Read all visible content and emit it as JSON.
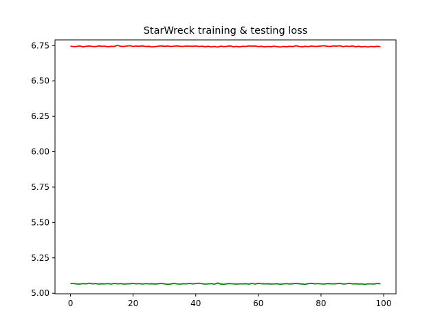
{
  "chart_data": {
    "type": "line",
    "title": "StarWreck training & testing loss",
    "xlabel": "",
    "ylabel": "",
    "xlim": [
      -4.95,
      103.95
    ],
    "ylim": [
      4.9961,
      6.7903
    ],
    "x_ticks": [
      0,
      20,
      40,
      60,
      80,
      100
    ],
    "y_ticks": [
      5.0,
      5.25,
      5.5,
      5.75,
      6.0,
      6.25,
      6.5,
      6.75
    ],
    "grid": false,
    "legend": "none",
    "x": [
      0,
      1,
      2,
      3,
      4,
      5,
      6,
      7,
      8,
      9,
      10,
      11,
      12,
      13,
      14,
      15,
      16,
      17,
      18,
      19,
      20,
      21,
      22,
      23,
      24,
      25,
      26,
      27,
      28,
      29,
      30,
      31,
      32,
      33,
      34,
      35,
      36,
      37,
      38,
      39,
      40,
      41,
      42,
      43,
      44,
      45,
      46,
      47,
      48,
      49,
      50,
      51,
      52,
      53,
      54,
      55,
      56,
      57,
      58,
      59,
      60,
      61,
      62,
      63,
      64,
      65,
      66,
      67,
      68,
      69,
      70,
      71,
      72,
      73,
      74,
      75,
      76,
      77,
      78,
      79,
      80,
      81,
      82,
      83,
      84,
      85,
      86,
      87,
      88,
      89,
      90,
      91,
      92,
      93,
      94,
      95,
      96,
      97,
      98,
      99
    ],
    "series": [
      {
        "color": "#ff0000",
        "values": [
          6.746,
          6.743,
          6.744,
          6.748,
          6.741,
          6.745,
          6.747,
          6.744,
          6.743,
          6.748,
          6.745,
          6.746,
          6.742,
          6.745,
          6.744,
          6.752,
          6.745,
          6.744,
          6.747,
          6.749,
          6.744,
          6.747,
          6.745,
          6.748,
          6.744,
          6.745,
          6.741,
          6.743,
          6.746,
          6.748,
          6.745,
          6.747,
          6.744,
          6.746,
          6.748,
          6.745,
          6.744,
          6.747,
          6.746,
          6.745,
          6.747,
          6.744,
          6.746,
          6.742,
          6.745,
          6.741,
          6.744,
          6.74,
          6.746,
          6.743,
          6.745,
          6.748,
          6.742,
          6.744,
          6.741,
          6.745,
          6.744,
          6.748,
          6.746,
          6.747,
          6.743,
          6.745,
          6.741,
          6.744,
          6.742,
          6.746,
          6.743,
          6.74,
          6.744,
          6.742,
          6.745,
          6.743,
          6.749,
          6.744,
          6.741,
          6.745,
          6.743,
          6.747,
          6.744,
          6.745,
          6.747,
          6.749,
          6.745,
          6.744,
          6.748,
          6.746,
          6.749,
          6.743,
          6.746,
          6.744,
          6.748,
          6.742,
          6.745,
          6.741,
          6.744,
          6.74,
          6.744,
          6.742,
          6.745,
          6.743
        ]
      },
      {
        "color": "#008000",
        "values": [
          5.069,
          5.069,
          5.065,
          5.065,
          5.068,
          5.066,
          5.071,
          5.066,
          5.068,
          5.065,
          5.067,
          5.066,
          5.068,
          5.065,
          5.069,
          5.066,
          5.068,
          5.065,
          5.066,
          5.067,
          5.069,
          5.066,
          5.068,
          5.065,
          5.068,
          5.066,
          5.067,
          5.065,
          5.067,
          5.069,
          5.066,
          5.063,
          5.065,
          5.069,
          5.066,
          5.064,
          5.067,
          5.066,
          5.069,
          5.066,
          5.068,
          5.071,
          5.067,
          5.064,
          5.066,
          5.068,
          5.064,
          5.072,
          5.065,
          5.063,
          5.067,
          5.068,
          5.066,
          5.065,
          5.066,
          5.066,
          5.067,
          5.064,
          5.069,
          5.065,
          5.07,
          5.067,
          5.066,
          5.067,
          5.065,
          5.066,
          5.067,
          5.063,
          5.066,
          5.068,
          5.065,
          5.067,
          5.069,
          5.067,
          5.065,
          5.063,
          5.068,
          5.07,
          5.066,
          5.068,
          5.066,
          5.065,
          5.068,
          5.067,
          5.066,
          5.067,
          5.07,
          5.065,
          5.066,
          5.07,
          5.066,
          5.067,
          5.065,
          5.066,
          5.063,
          5.066,
          5.066,
          5.065,
          5.069,
          5.066
        ]
      }
    ]
  }
}
